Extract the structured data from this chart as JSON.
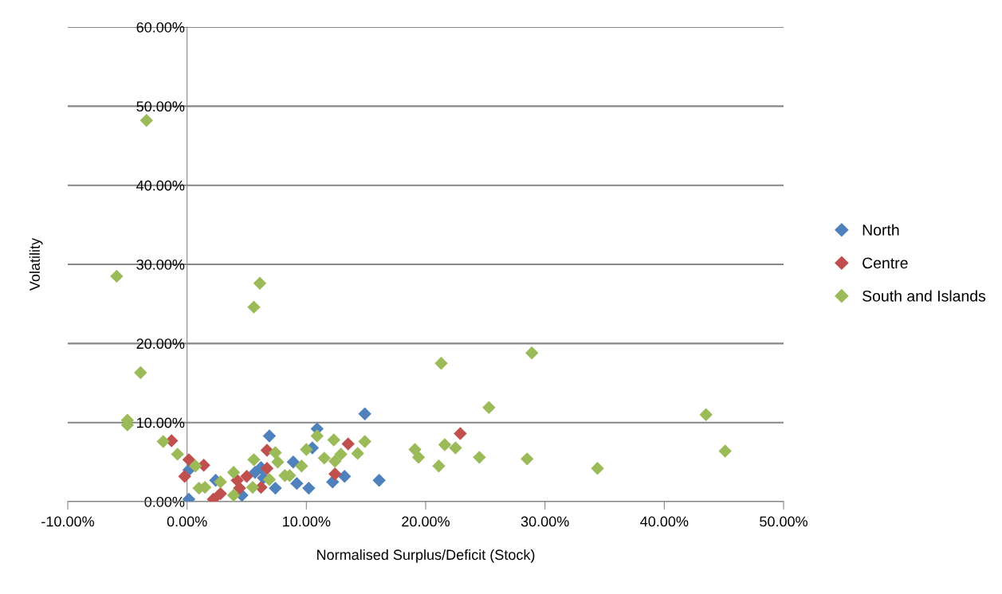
{
  "chart_data": {
    "type": "scatter",
    "xlabel": "Normalised Surplus/Deficit (Stock)",
    "ylabel": "Volatility",
    "xlim": [
      -10,
      50
    ],
    "ylim": [
      0,
      60
    ],
    "xticks": [
      {
        "value": -10,
        "label": "-10.00%"
      },
      {
        "value": 0,
        "label": "0.00%"
      },
      {
        "value": 10,
        "label": "10.00%"
      },
      {
        "value": 20,
        "label": "20.00%"
      },
      {
        "value": 30,
        "label": "30.00%"
      },
      {
        "value": 40,
        "label": "40.00%"
      },
      {
        "value": 50,
        "label": "50.00%"
      }
    ],
    "yticks": [
      {
        "value": 0,
        "label": "0.00%"
      },
      {
        "value": 10,
        "label": "10.00%"
      },
      {
        "value": 20,
        "label": "20.00%"
      },
      {
        "value": 30,
        "label": "30.00%"
      },
      {
        "value": 40,
        "label": "40.00%"
      },
      {
        "value": 50,
        "label": "50.00%"
      },
      {
        "value": 60,
        "label": "60.00%"
      }
    ],
    "grid": "y",
    "legend": "right",
    "marker": "diamond",
    "series": [
      {
        "name": "North",
        "color": "#4f81bd",
        "x": [
          0.15,
          0.15,
          4.6,
          5.7,
          6.2,
          6.9,
          7.4,
          8.9,
          9.2,
          10.2,
          10.5,
          10.9,
          12.2,
          13.2,
          14.9,
          16.1,
          2.4,
          6.4
        ],
        "values": [
          0.3,
          4.0,
          0.8,
          3.7,
          4.3,
          8.3,
          1.7,
          5.0,
          2.3,
          1.7,
          6.8,
          9.2,
          2.5,
          3.2,
          11.1,
          2.7,
          2.7,
          3.0
        ]
      },
      {
        "name": "Centre",
        "color": "#c0504d",
        "x": [
          -1.3,
          0.15,
          -0.2,
          1.4,
          2.2,
          2.8,
          4.2,
          4.4,
          5.0,
          6.2,
          6.7,
          6.7,
          12.4,
          13.5,
          22.9
        ],
        "values": [
          7.7,
          5.3,
          3.2,
          4.6,
          0.3,
          1.0,
          2.7,
          1.7,
          3.2,
          1.8,
          6.5,
          4.2,
          3.5,
          7.3,
          8.6
        ]
      },
      {
        "name": "South and Islands",
        "color": "#9bbb59",
        "x": [
          -3.4,
          -5.9,
          6.1,
          5.6,
          -3.9,
          -5.0,
          -5.0,
          21.3,
          28.9,
          25.3,
          43.5,
          45.1,
          34.4,
          28.5,
          24.5,
          22.5,
          21.6,
          21.1,
          19.4,
          19.1,
          14.9,
          14.3,
          12.9,
          12.4,
          12.3,
          11.5,
          10.9,
          10.0,
          -2.0,
          -0.8,
          0.7,
          1.0,
          1.5,
          2.8,
          3.9,
          3.9,
          5.5,
          5.6,
          6.9,
          7.4,
          7.6,
          8.2,
          8.6,
          9.6
        ],
        "values": [
          48.2,
          28.5,
          27.6,
          24.6,
          16.3,
          10.3,
          9.7,
          17.5,
          18.8,
          11.9,
          11.0,
          6.4,
          4.2,
          5.4,
          5.6,
          6.8,
          7.2,
          4.5,
          5.6,
          6.6,
          7.6,
          6.1,
          6.0,
          5.1,
          7.8,
          5.5,
          8.3,
          6.6,
          7.6,
          6.0,
          4.5,
          1.7,
          1.8,
          2.5,
          3.7,
          0.8,
          1.8,
          5.3,
          2.8,
          6.2,
          5.0,
          3.3,
          3.3,
          4.5
        ]
      }
    ]
  }
}
